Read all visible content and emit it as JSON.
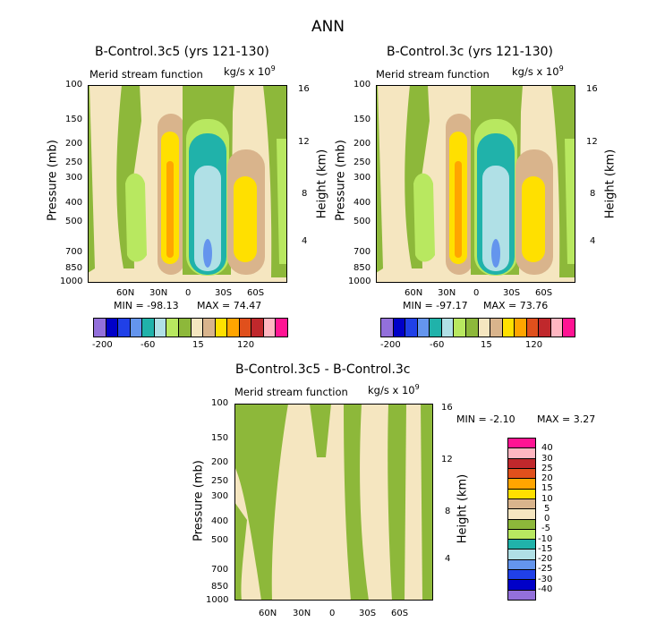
{
  "title": "ANN",
  "colors": {
    "neg200": "#9370db",
    "neg100": "#0000c8",
    "neg80": "#2040e8",
    "neg60": "#6495ed",
    "neg40": "#20b2aa",
    "neg20": "#b0e0e6",
    "neg10": "#b8e860",
    "neg0": "#8db83a",
    "pos0": "#f5e6c0",
    "pos15": "#d9b48c",
    "pos30": "#ffe000",
    "pos60": "#ffa500",
    "pos90": "#e0501c",
    "pos120": "#c0282c",
    "pos150": "#ffb6c1",
    "pos200": "#ff1493"
  },
  "chart_data": [
    {
      "type": "heatmap",
      "title": "B-Control.3c5 (yrs 121-130)",
      "subtitle": "Merid stream function",
      "units_prefix": "kg/s x 10",
      "units_exp": "9",
      "ylabel": "Pressure (mb)",
      "y2label": "Height (km)",
      "yticks": [
        "100",
        "150",
        "200",
        "250",
        "300",
        "400",
        "500",
        "700",
        "850",
        "1000"
      ],
      "y2ticks": [
        "16",
        "12",
        "8",
        "4"
      ],
      "xticks": [
        "60N",
        "30N",
        "0",
        "30S",
        "60S"
      ],
      "min_label": "MIN = -98.13",
      "max_label": "MAX = 74.47",
      "min": -98.13,
      "max": 74.47,
      "colorbar_labels": [
        "-200",
        "-60",
        "15",
        "120"
      ]
    },
    {
      "type": "heatmap",
      "title": "B-Control.3c (yrs 121-130)",
      "subtitle": "Merid stream function",
      "units_prefix": "kg/s x 10",
      "units_exp": "9",
      "ylabel": "Pressure (mb)",
      "y2label": "Height (km)",
      "yticks": [
        "100",
        "150",
        "200",
        "250",
        "300",
        "400",
        "500",
        "700",
        "850",
        "1000"
      ],
      "y2ticks": [
        "16",
        "12",
        "8",
        "4"
      ],
      "xticks": [
        "60N",
        "30N",
        "0",
        "30S",
        "60S"
      ],
      "min_label": "MIN = -97.17",
      "max_label": "MAX = 73.76",
      "min": -97.17,
      "max": 73.76,
      "colorbar_labels": [
        "-200",
        "-60",
        "15",
        "120"
      ]
    },
    {
      "type": "heatmap",
      "title": "B-Control.3c5 - B-Control.3c",
      "subtitle": "Merid stream function",
      "units_prefix": "kg/s x 10",
      "units_exp": "9",
      "ylabel": "Pressure (mb)",
      "y2label": "Height (km)",
      "yticks": [
        "100",
        "150",
        "200",
        "250",
        "300",
        "400",
        "500",
        "700",
        "850",
        "1000"
      ],
      "y2ticks": [
        "16",
        "12",
        "8",
        "4"
      ],
      "xticks": [
        "60N",
        "30N",
        "0",
        "30S",
        "60S"
      ],
      "min_label": "MIN =  -2.10",
      "max_label": "MAX =   3.27",
      "min": -2.1,
      "max": 3.27,
      "colorbar_labels": [
        "40",
        "30",
        "25",
        "20",
        "15",
        "10",
        "5",
        "0",
        "-5",
        "-10",
        "-15",
        "-20",
        "-25",
        "-30",
        "-40"
      ]
    }
  ]
}
